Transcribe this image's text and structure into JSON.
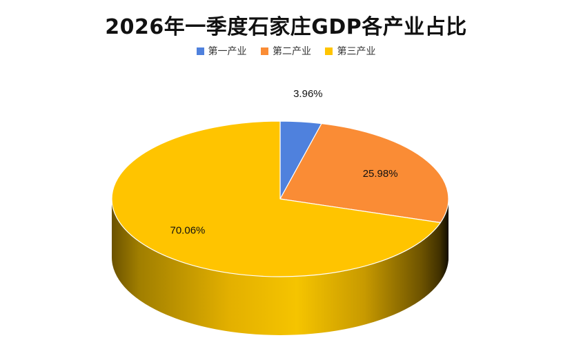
{
  "chart_data": {
    "type": "pie",
    "title": "2026年一季度石家庄GDP各产业占比",
    "categories": [
      "第一产业",
      "第二产业",
      "第三产业"
    ],
    "values": [
      3.96,
      25.98,
      70.06
    ],
    "data_labels": [
      "3.96%",
      "25.98%",
      "70.06%"
    ],
    "colors": [
      "#4F81DD",
      "#FA8C35",
      "#FFC400"
    ],
    "legend_position": "top",
    "style": "3d"
  }
}
